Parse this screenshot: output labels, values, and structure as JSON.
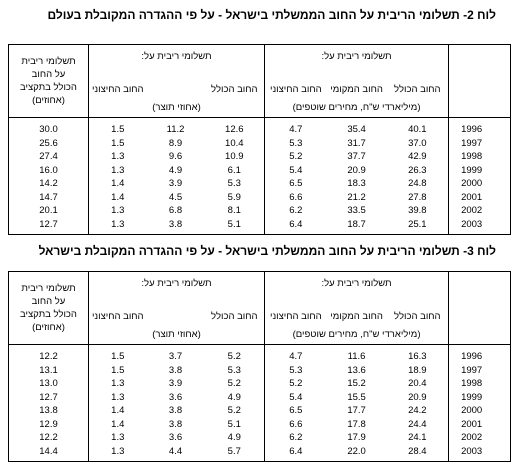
{
  "tables": [
    {
      "title": "לוח 2-  תשלומי הריבית על החוב הממשלתי בישראל -  על פי ההגדרה המקובלת בעולם",
      "group1": {
        "label": "תשלומי ריבית על:",
        "cols": [
          "החוב הכולל",
          "החוב המקומי",
          "החוב החיצוני"
        ],
        "unit": "(מיליארדי ש\"ח, מחירים שוטפים)"
      },
      "group2": {
        "label": "תשלומי ריבית על:",
        "cols": [
          "החוב הכולל",
          null,
          "החוב החיצוני"
        ],
        "unit": "(אחוזי תוצר)"
      },
      "last_col": [
        "תשלומי ריבית",
        "על החוב",
        "הכולל בתקציב",
        "(אחוזים)"
      ],
      "rows": [
        [
          "1996",
          "40.1",
          "35.4",
          "4.7",
          "12.6",
          "11.2",
          "1.5",
          "30.0"
        ],
        [
          "1997",
          "37.0",
          "31.7",
          "5.3",
          "10.4",
          "8.9",
          "1.5",
          "25.6"
        ],
        [
          "1998",
          "42.9",
          "37.7",
          "5.2",
          "10.9",
          "9.6",
          "1.3",
          "27.4"
        ],
        [
          "1999",
          "26.3",
          "20.9",
          "5.4",
          "6.1",
          "4.9",
          "1.3",
          "16.0"
        ],
        [
          "2000",
          "24.8",
          "18.3",
          "6.5",
          "5.3",
          "3.9",
          "1.4",
          "14.2"
        ],
        [
          "2001",
          "27.8",
          "21.2",
          "6.6",
          "5.9",
          "4.5",
          "1.4",
          "14.7"
        ],
        [
          "2002",
          "39.8",
          "33.5",
          "6.2",
          "8.1",
          "6.8",
          "1.3",
          "20.1"
        ],
        [
          "2003",
          "25.1",
          "18.7",
          "6.4",
          "5.1",
          "3.8",
          "1.3",
          "12.7"
        ]
      ]
    },
    {
      "title": "לוח 3-  תשלומי הריבית על החוב הממשלתי בישראל -  על פי ההגדרה המקובלת בישראל",
      "group1": {
        "label": "תשלומי ריבית על:",
        "cols": [
          "החוב הכולל",
          "החוב המקומי",
          "החוב החיצוני"
        ],
        "unit": "(מיליארדי ש\"ח, מחירים שוטפים)"
      },
      "group2": {
        "label": "תשלומי ריבית על:",
        "cols": [
          "החוב הכולל",
          null,
          "החוב החיצוני"
        ],
        "unit": "(אחוזי תוצר)"
      },
      "last_col": [
        "תשלומי ריבית",
        "על החוב",
        "הכולל בתקציב",
        "(אחוזים)"
      ],
      "rows": [
        [
          "1996",
          "16.3",
          "11.6",
          "4.7",
          "5.2",
          "3.7",
          "1.5",
          "12.2"
        ],
        [
          "1997",
          "18.9",
          "13.6",
          "5.3",
          "5.3",
          "3.8",
          "1.5",
          "13.1"
        ],
        [
          "1998",
          "20.4",
          "15.2",
          "5.2",
          "5.2",
          "3.9",
          "1.3",
          "13.0"
        ],
        [
          "1999",
          "20.9",
          "15.5",
          "5.4",
          "4.9",
          "3.6",
          "1.3",
          "12.7"
        ],
        [
          "2000",
          "24.2",
          "17.7",
          "6.5",
          "5.2",
          "3.8",
          "1.4",
          "13.8"
        ],
        [
          "2001",
          "24.4",
          "17.8",
          "6.6",
          "5.1",
          "3.8",
          "1.4",
          "12.9"
        ],
        [
          "2002",
          "24.1",
          "17.9",
          "6.2",
          "4.9",
          "3.6",
          "1.3",
          "12.2"
        ],
        [
          "2003",
          "28.4",
          "22.0",
          "6.4",
          "5.7",
          "4.4",
          "1.3",
          "14.4"
        ]
      ]
    }
  ]
}
